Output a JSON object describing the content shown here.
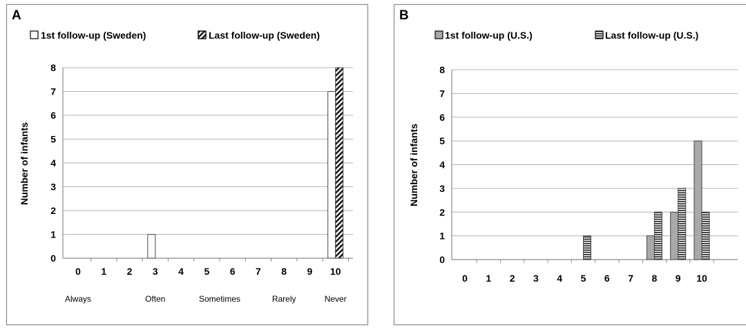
{
  "colors": {
    "frame": "#888888",
    "grid": "#b3b3b3",
    "axis": "#8a8a8a",
    "bar_outline": "#444444",
    "sweden_first_fill": "#ffffff",
    "sweden_last_pattern": "diagonal-stripes",
    "us_first_fill": "#a9a9a9",
    "us_last_pattern": "horizontal-stripes"
  },
  "chart_data": [
    {
      "panel_label": "A",
      "type": "bar",
      "ylabel": "Number of infants",
      "ylim": [
        0,
        8
      ],
      "yticks": [
        "0",
        "1",
        "2",
        "3",
        "4",
        "5",
        "6",
        "7",
        "8"
      ],
      "grid": true,
      "legend_position": "top",
      "categories": [
        "0",
        "1",
        "2",
        "3",
        "4",
        "5",
        "6",
        "7",
        "8",
        "9",
        "10"
      ],
      "category_descriptors": [
        {
          "label": "Always",
          "at": "0"
        },
        {
          "label": "Often",
          "at": "3"
        },
        {
          "label": "Sometimes",
          "at": "5.5"
        },
        {
          "label": "Rarely",
          "at": "8"
        },
        {
          "label": "Never",
          "at": "10"
        }
      ],
      "series": [
        {
          "name": "1st follow-up (Sweden)",
          "values": [
            0,
            0,
            0,
            1,
            0,
            0,
            0,
            0,
            0,
            0,
            7
          ]
        },
        {
          "name": "Last follow-up  (Sweden)",
          "values": [
            0,
            0,
            0,
            0,
            0,
            0,
            0,
            0,
            0,
            0,
            8
          ]
        }
      ]
    },
    {
      "panel_label": "B",
      "type": "bar",
      "ylabel": "Number of infants",
      "ylim": [
        0,
        8
      ],
      "yticks": [
        "0",
        "1",
        "2",
        "3",
        "4",
        "5",
        "6",
        "7",
        "8"
      ],
      "grid": true,
      "legend_position": "top",
      "categories": [
        "0",
        "1",
        "2",
        "3",
        "4",
        "5",
        "6",
        "7",
        "8",
        "9",
        "10"
      ],
      "series": [
        {
          "name": "1st follow-up (U.S.)",
          "values": [
            0,
            0,
            0,
            0,
            0,
            0,
            0,
            0,
            1,
            2,
            5
          ]
        },
        {
          "name": "Last follow-up (U.S.)",
          "values": [
            0,
            0,
            0,
            0,
            0,
            1,
            0,
            0,
            2,
            3,
            2
          ]
        }
      ]
    }
  ]
}
